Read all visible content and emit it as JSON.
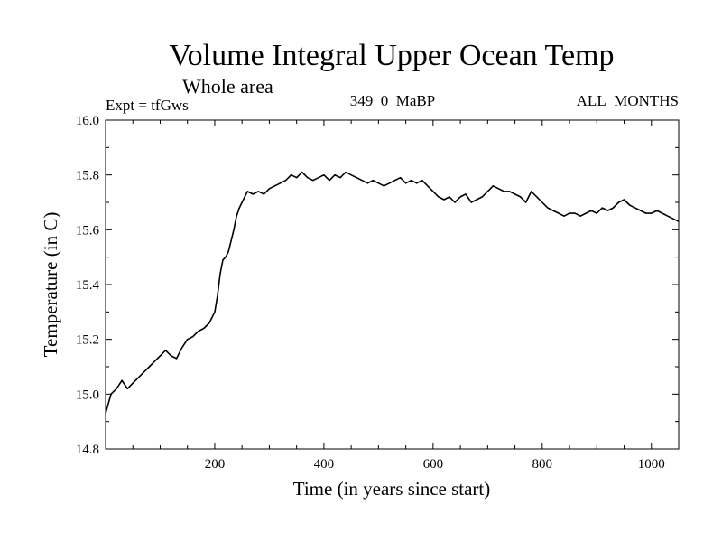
{
  "chart_data": {
    "type": "line",
    "title": "Volume Integral Upper Ocean Temp",
    "subtitle": "Whole area",
    "annotation_left": "Expt = tfGws",
    "annotation_center": "349_0_MaBP",
    "annotation_right": "ALL_MONTHS",
    "xlabel": "Time (in years since start)",
    "ylabel": "Temperature (in C)",
    "xlim": [
      0,
      1050
    ],
    "ylim": [
      14.8,
      16.0
    ],
    "x_ticks": [
      200,
      400,
      600,
      800,
      1000
    ],
    "x_tick_labels": [
      "200",
      "400",
      "600",
      "800",
      "1000"
    ],
    "y_ticks": [
      14.8,
      15.0,
      15.2,
      15.4,
      15.6,
      15.8,
      16.0
    ],
    "y_tick_labels": [
      "14.8",
      "15.0",
      "15.2",
      "15.4",
      "15.6",
      "15.8",
      "16.0"
    ],
    "grid": false,
    "series": [
      {
        "name": "Temperature",
        "x": [
          0,
          10,
          20,
          30,
          40,
          50,
          60,
          70,
          80,
          90,
          100,
          110,
          120,
          130,
          140,
          150,
          160,
          170,
          180,
          190,
          200,
          205,
          210,
          215,
          220,
          225,
          230,
          235,
          240,
          245,
          250,
          255,
          260,
          270,
          280,
          290,
          300,
          310,
          320,
          330,
          340,
          350,
          360,
          370,
          380,
          390,
          400,
          410,
          420,
          430,
          440,
          450,
          460,
          470,
          480,
          490,
          500,
          510,
          520,
          530,
          540,
          550,
          560,
          570,
          580,
          590,
          600,
          610,
          620,
          630,
          640,
          650,
          660,
          670,
          680,
          690,
          700,
          710,
          720,
          730,
          740,
          750,
          760,
          770,
          780,
          790,
          800,
          810,
          820,
          830,
          840,
          850,
          860,
          870,
          880,
          890,
          900,
          910,
          920,
          930,
          940,
          950,
          960,
          970,
          980,
          990,
          1000,
          1010,
          1020,
          1030,
          1040,
          1050
        ],
        "values": [
          14.93,
          15.0,
          15.02,
          15.05,
          15.02,
          15.04,
          15.06,
          15.08,
          15.1,
          15.12,
          15.14,
          15.16,
          15.14,
          15.13,
          15.17,
          15.2,
          15.21,
          15.23,
          15.24,
          15.26,
          15.3,
          15.36,
          15.44,
          15.49,
          15.5,
          15.52,
          15.56,
          15.6,
          15.65,
          15.68,
          15.7,
          15.72,
          15.74,
          15.73,
          15.74,
          15.73,
          15.75,
          15.76,
          15.77,
          15.78,
          15.8,
          15.79,
          15.81,
          15.79,
          15.78,
          15.79,
          15.8,
          15.78,
          15.8,
          15.79,
          15.81,
          15.8,
          15.79,
          15.78,
          15.77,
          15.78,
          15.77,
          15.76,
          15.77,
          15.78,
          15.79,
          15.77,
          15.78,
          15.77,
          15.78,
          15.76,
          15.74,
          15.72,
          15.71,
          15.72,
          15.7,
          15.72,
          15.73,
          15.7,
          15.71,
          15.72,
          15.74,
          15.76,
          15.75,
          15.74,
          15.74,
          15.73,
          15.72,
          15.7,
          15.74,
          15.72,
          15.7,
          15.68,
          15.67,
          15.66,
          15.65,
          15.66,
          15.66,
          15.65,
          15.66,
          15.67,
          15.66,
          15.68,
          15.67,
          15.68,
          15.7,
          15.71,
          15.69,
          15.68,
          15.67,
          15.66,
          15.66,
          15.67,
          15.66,
          15.65,
          15.64,
          15.63
        ]
      }
    ]
  }
}
